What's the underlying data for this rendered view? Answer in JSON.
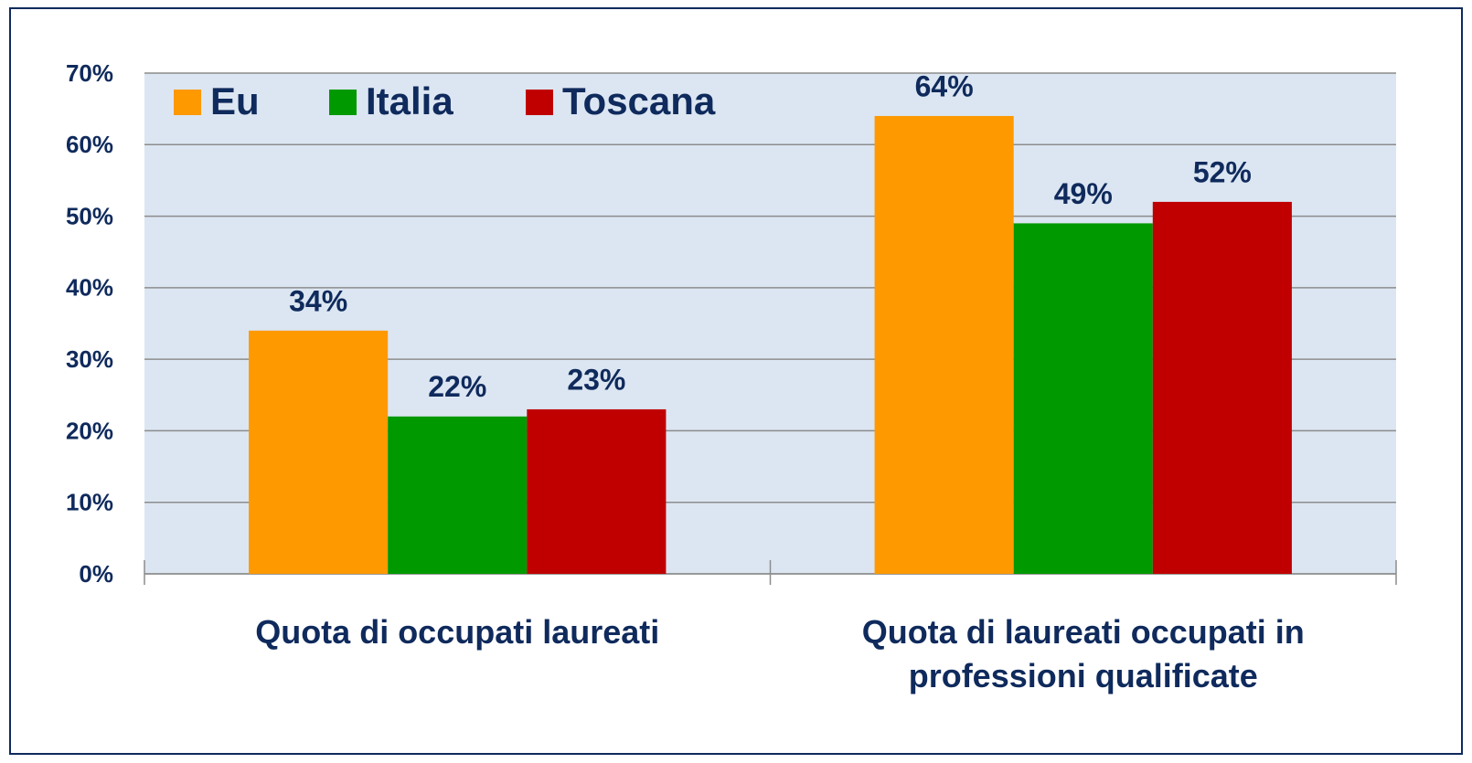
{
  "chart_data": {
    "type": "bar",
    "categories": [
      "Quota di occupati laureati",
      "Quota di laureati occupati in professioni qualificate"
    ],
    "series": [
      {
        "name": "Eu",
        "color": "#ff9900",
        "values": [
          34,
          64
        ],
        "value_labels": [
          "34%",
          "64%"
        ]
      },
      {
        "name": "Italia",
        "color": "#009900",
        "values": [
          22,
          49
        ],
        "value_labels": [
          "22%",
          "49%"
        ]
      },
      {
        "name": "Toscana",
        "color": "#c00000",
        "values": [
          23,
          52
        ],
        "value_labels": [
          "23%",
          "52%"
        ]
      }
    ],
    "ylim": [
      0,
      70
    ],
    "yticks": [
      {
        "value": 0,
        "label": "0%"
      },
      {
        "value": 10,
        "label": "10%"
      },
      {
        "value": 20,
        "label": "20%"
      },
      {
        "value": 30,
        "label": "30%"
      },
      {
        "value": 40,
        "label": "40%"
      },
      {
        "value": 50,
        "label": "50%"
      },
      {
        "value": 60,
        "label": "60%"
      },
      {
        "value": 70,
        "label": "70%"
      }
    ],
    "grid": true,
    "legend": "upper left"
  }
}
